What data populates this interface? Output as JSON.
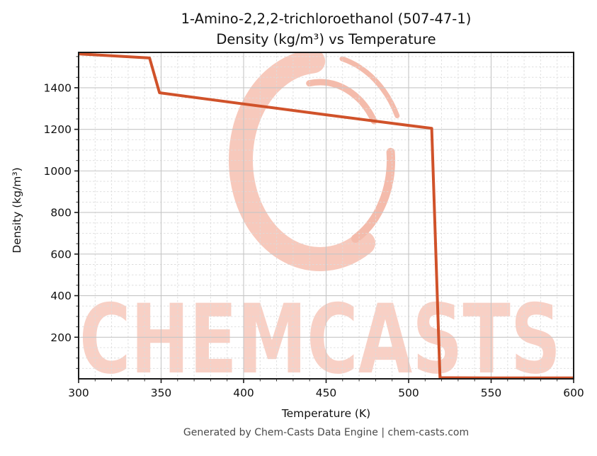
{
  "header": {
    "title_line1": "1-Amino-2,2,2-trichloroethanol (507-47-1)",
    "title_line2": "Density (kg/m³) vs Temperature"
  },
  "footer": {
    "text": "Generated by Chem-Casts Data Engine | chem-casts.com"
  },
  "watermark": {
    "text": "CHEMCASTS",
    "logo": "enso-brush-circle-logo",
    "text_color": "#f8d0c5",
    "logo_color": "#f7c9bc",
    "logo_accent_color": "#f4bbab"
  },
  "colors": {
    "series_line": "#d0522a",
    "grid_major": "#c6c6c6",
    "grid_minor": "#dcdcdc",
    "spine": "#1a1a1a",
    "tick_label": "#111111",
    "footer_text": "#4a4a4a"
  },
  "chart_data": {
    "type": "line",
    "title": "1-Amino-2,2,2-trichloroethanol (507-47-1) — Density (kg/m³) vs Temperature",
    "xlabel": "Temperature (K)",
    "ylabel": "Density (kg/m³)",
    "xlim": [
      300,
      600
    ],
    "ylim": [
      0,
      1570
    ],
    "x_major_ticks": [
      300,
      350,
      400,
      450,
      500,
      550,
      600
    ],
    "y_major_ticks": [
      200,
      400,
      600,
      800,
      1000,
      1200,
      1400
    ],
    "x_minor_step": 10,
    "y_minor_step": 50,
    "grid": {
      "major": "solid",
      "minor": "dashed"
    },
    "legend": "none",
    "series": [
      {
        "name": "Density (kg/m³)",
        "color": "#d0522a",
        "points": [
          [
            300,
            1563
          ],
          [
            343,
            1543
          ],
          [
            349,
            1376
          ],
          [
            400,
            1322
          ],
          [
            450,
            1270
          ],
          [
            500,
            1219
          ],
          [
            514,
            1205
          ],
          [
            519,
            5
          ],
          [
            550,
            4
          ],
          [
            600,
            4
          ]
        ]
      }
    ]
  }
}
